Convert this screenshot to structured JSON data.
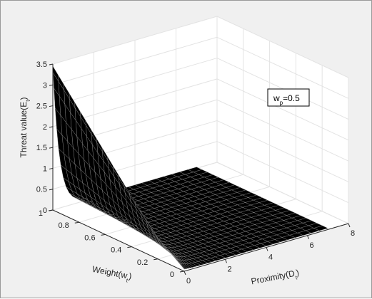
{
  "chart_data": {
    "type": "surface",
    "annotation": {
      "main": "w",
      "subscript": "p",
      "suffix": "=0.5"
    },
    "axes": {
      "x": {
        "label_main": "Proximity(D",
        "label_sub": "t",
        "label_end": ")",
        "lim": [
          0,
          8
        ],
        "ticks": [
          0,
          2,
          4,
          6,
          8
        ],
        "tick_labels": [
          "0",
          "2",
          "4",
          "6",
          "8"
        ]
      },
      "y": {
        "label_main": "Weight(w",
        "label_sub": "t",
        "label_end": ")",
        "lim": [
          0,
          1
        ],
        "ticks": [
          0,
          0.2,
          0.4,
          0.6,
          0.8,
          1
        ],
        "tick_labels": [
          "0",
          "0.2",
          "0.4",
          "0.6",
          "0.8",
          "1"
        ]
      },
      "z": {
        "label_main": "Threat value(E",
        "label_sub": "t",
        "label_end": ")",
        "lim": [
          0,
          3.5
        ],
        "ticks": [
          0,
          0.5,
          1,
          1.5,
          2,
          2.5,
          3,
          3.5
        ],
        "tick_labels": [
          "0",
          "0.5",
          "1",
          "1.5",
          "2",
          "2.5",
          "3",
          "3.5"
        ]
      }
    },
    "grid": true,
    "surface": {
      "x_range": [
        0,
        7
      ],
      "y_range": [
        0,
        1
      ],
      "z_at_x0": [
        0.05,
        0.5,
        1.2,
        1.95,
        2.7,
        3.45
      ],
      "z_far_field": 0.03
    },
    "colors": {
      "surface_fill": "#000000",
      "mesh_edge": "#9a9a9a",
      "axes_bg": "#ffffff",
      "grid": "#e3e3e3",
      "figure_bg": "#f0f0f0"
    }
  }
}
